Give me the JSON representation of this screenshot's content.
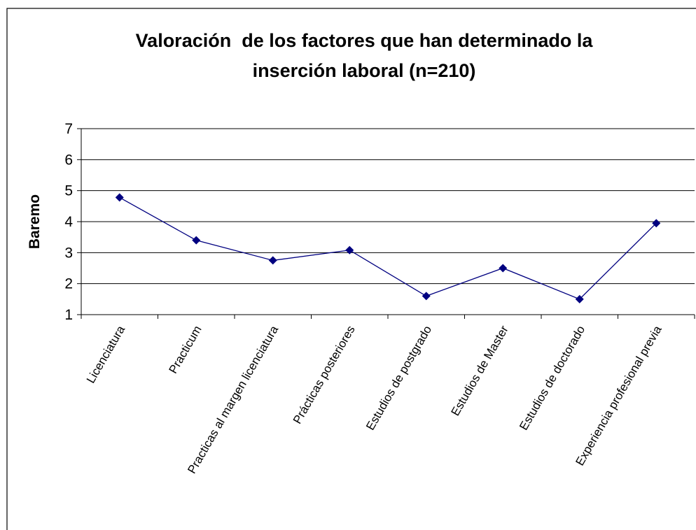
{
  "chart_data": {
    "type": "line",
    "title": [
      "Valoración  de los factores que han determinado la",
      "inserción laboral (n=210)"
    ],
    "ylabel": "Baremo",
    "categories": [
      "Licenciatura",
      "Practicum",
      "Practicas al margen licenciatura",
      "Prácticas posteriores",
      "Estudios de postgrado",
      "Estudios de Master",
      "Estudios de doctorado",
      "Experiencia profesional previa"
    ],
    "values": [
      4.78,
      3.4,
      2.75,
      3.08,
      1.6,
      2.5,
      1.5,
      3.95
    ],
    "color": "#000080",
    "ylim": [
      1,
      7
    ],
    "yticks": [
      1,
      2,
      3,
      4,
      5,
      6,
      7
    ],
    "grid": true
  }
}
